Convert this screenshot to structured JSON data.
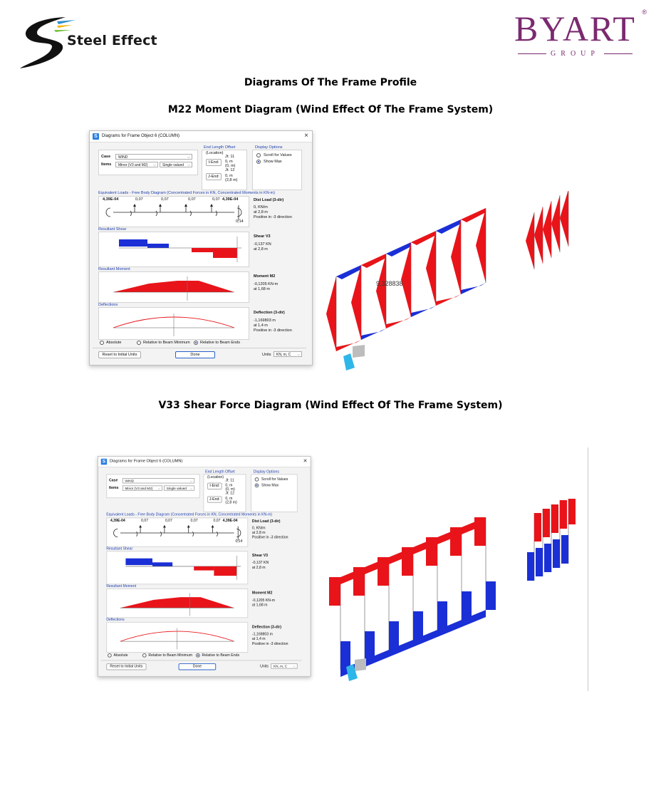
{
  "header": {
    "left_logo_text": "Steel Effect",
    "right_logo_text": "BYART",
    "right_logo_sub": "GROUP",
    "right_logo_mark": "®"
  },
  "headings": {
    "main": "Diagrams Of The Frame Profile",
    "section1": "M22 Moment Diagram (Wind Effect Of The Frame System)",
    "section2": "V33 Shear Force Diagram (Wind Effect Of The Frame System)"
  },
  "colors": {
    "positive": "#e8141a",
    "negative": "#1a2fd6",
    "title": "#1f3fae"
  },
  "dialog": {
    "icon": "S",
    "title": "Diagrams for Frame Object 6  (COLUMN)",
    "close": "×",
    "case_label": "Case",
    "case_value": "WIND",
    "items_label": "Items",
    "items_value": "Minor (V3 and M2)",
    "items_mode": "Single valued",
    "end_offset_title": "End Length Offset",
    "end_offset_sub": "(Location)",
    "iend_label": "I-End:",
    "iend_jt": "Jt: 11",
    "iend_val1": "0, m",
    "iend_val2": "(0, m)",
    "jend_label": "J-End:",
    "jend_jt": "Jt: 12",
    "jend_val1": "0, m",
    "jend_val2": "(2,8 m)",
    "display_title": "Display Options",
    "scroll_label": "Scroll for Values",
    "showmax_label": "Show Max",
    "equiv_title": "Equivalent Loads - Free Body Diagram  (Concentrated Forces in KN, Concentrated Moments in KN-m)",
    "fbd_left": "4,39E-04",
    "fbd_vals": [
      "0,07",
      "0,07",
      "0,07",
      "0,07"
    ],
    "fbd_right": "4,39E-04",
    "fbd_end": "0,14",
    "dist_title": "Dist Load (3-dir)",
    "dist_v1": "0, KN/m",
    "dist_v2": "at 2,8 m",
    "dist_v3": "Positive in -3 direction",
    "shear_section": "Resultant Shear",
    "shear_title": "Shear V3",
    "shear_v1": "-0,137 KN",
    "shear_v2": "at 2,8 m",
    "moment_section": "Resultant Moment",
    "moment_title": "Moment M2",
    "moment_v1": "-0,1205 KN-m",
    "moment_v2": "at 1,68 m",
    "defl_section": "Deflections",
    "defl_title": "Deflection (3-dir)",
    "defl_v1": "-1,169803 m",
    "defl_v2": "at 1,4 m",
    "defl_v3": "Positive in -3 direction",
    "opt_absolute": "Absolute",
    "opt_min": "Relative to Beam Minimum",
    "opt_ends": "Relative to Beam Ends",
    "reset_button": "Reset to Initial Units",
    "done_button": "Done",
    "units_label": "Units",
    "units_value": "KN, m, C"
  },
  "model1": {
    "label": "9,328838"
  }
}
